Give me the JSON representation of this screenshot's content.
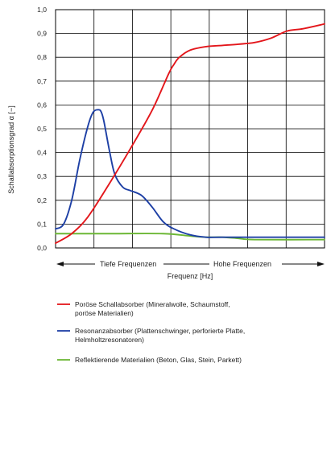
{
  "chart_data": {
    "type": "line",
    "title": "",
    "xlabel": "Frequenz  [Hz]",
    "ylabel": "Schallabsorptionsgrad  α [−]",
    "ylim": [
      0,
      1
    ],
    "xlim": [
      0,
      1
    ],
    "yticks": [
      "0,0",
      "0,1",
      "0,2",
      "0,3",
      "0,4",
      "0,5",
      "0,6",
      "0,7",
      "0,8",
      "0,9",
      "1,0"
    ],
    "grid": true,
    "regions": {
      "low": "Tiefe Frequenzen",
      "high": "Hohe Frequenzen"
    },
    "series": [
      {
        "name": "Poröse Schallabsorber (Mineralwolle, Schaumstoff,",
        "name_line2": "poröse Materialien)",
        "color": "#e3161b",
        "x": [
          0,
          0.06,
          0.12,
          0.2,
          0.28,
          0.36,
          0.42,
          0.44,
          0.46,
          0.5,
          0.56,
          0.62,
          0.68,
          0.74,
          0.8,
          0.86,
          0.92,
          1.0
        ],
        "y": [
          0.02,
          0.06,
          0.13,
          0.27,
          0.42,
          0.58,
          0.73,
          0.77,
          0.8,
          0.83,
          0.845,
          0.85,
          0.855,
          0.862,
          0.88,
          0.91,
          0.92,
          0.94
        ]
      },
      {
        "name": "Resonanzabsorber (Plattenschwinger, perforierte Platte,",
        "name_line2": "Helmholtzresonatoren)",
        "color": "#1d3fa5",
        "x": [
          0,
          0.03,
          0.06,
          0.09,
          0.12,
          0.14,
          0.16,
          0.17,
          0.18,
          0.2,
          0.22,
          0.25,
          0.28,
          0.32,
          0.36,
          0.4,
          0.44,
          0.5,
          0.56,
          0.62,
          1.0
        ],
        "y": [
          0.08,
          0.1,
          0.2,
          0.37,
          0.51,
          0.57,
          0.58,
          0.57,
          0.53,
          0.41,
          0.31,
          0.255,
          0.24,
          0.22,
          0.17,
          0.11,
          0.08,
          0.055,
          0.045,
          0.045,
          0.045
        ]
      },
      {
        "name": "Reflektierende Materialien (Beton, Glas, Stein, Parkett)",
        "name_line2": "",
        "color": "#6cb735",
        "x": [
          0,
          0.2,
          0.4,
          0.5,
          0.56,
          0.62,
          0.68,
          0.74,
          1.0
        ],
        "y": [
          0.06,
          0.06,
          0.06,
          0.05,
          0.045,
          0.045,
          0.04,
          0.035,
          0.035
        ]
      }
    ]
  }
}
